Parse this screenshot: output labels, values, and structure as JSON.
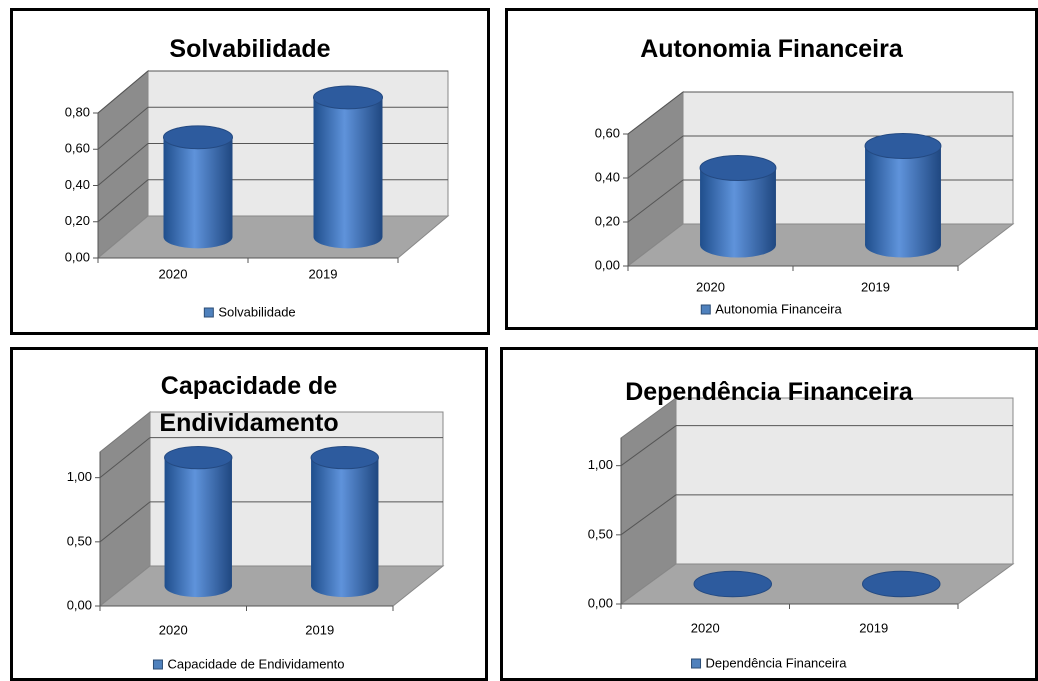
{
  "chart_data": [
    {
      "type": "bar3d",
      "title": "Solvabilidade",
      "categories": [
        "2020",
        "2019"
      ],
      "series": [
        {
          "name": "Solvabilidade",
          "color": "#4f81bd",
          "values": [
            0.55,
            0.77
          ]
        }
      ],
      "ylim": [
        0,
        0.8
      ],
      "yticks": [
        {
          "value": 0,
          "label": "0,00"
        },
        {
          "value": 0.2,
          "label": "0,20"
        },
        {
          "value": 0.4,
          "label": "0,40"
        },
        {
          "value": 0.6,
          "label": "0,60"
        },
        {
          "value": 0.8,
          "label": "0,80"
        }
      ],
      "grid": true,
      "legend": "bottom"
    },
    {
      "type": "bar3d",
      "title": "Autonomia Financeira",
      "categories": [
        "2020",
        "2019"
      ],
      "series": [
        {
          "name": "Autonomia Financeira",
          "color": "#4f81bd",
          "values": [
            0.35,
            0.45
          ]
        }
      ],
      "ylim": [
        0,
        0.6
      ],
      "yticks": [
        {
          "value": 0,
          "label": "0,00"
        },
        {
          "value": 0.2,
          "label": "0,20"
        },
        {
          "value": 0.4,
          "label": "0,40"
        },
        {
          "value": 0.6,
          "label": "0,60"
        }
      ],
      "grid": true,
      "legend": "bottom"
    },
    {
      "type": "bar3d",
      "title": "Capacidade de Endividamento",
      "categories": [
        "2020",
        "2019"
      ],
      "series": [
        {
          "name": "Capacidade de Endividamento",
          "color": "#4f81bd",
          "values": [
            1.0,
            1.0
          ]
        }
      ],
      "ylim": [
        0,
        1.2
      ],
      "yticks": [
        {
          "value": 0,
          "label": "0,00"
        },
        {
          "value": 0.5,
          "label": "0,50"
        },
        {
          "value": 1.0,
          "label": "1,00"
        }
      ],
      "grid": true,
      "legend": "bottom"
    },
    {
      "type": "bar3d",
      "title": "Dependência Financeira",
      "categories": [
        "2020",
        "2019"
      ],
      "series": [
        {
          "name": "Dependência Financeira",
          "color": "#4f81bd",
          "values": [
            0.0,
            0.0
          ]
        }
      ],
      "ylim": [
        0,
        1.2
      ],
      "yticks": [
        {
          "value": 0,
          "label": "0,00"
        },
        {
          "value": 0.5,
          "label": "0,50"
        },
        {
          "value": 1.0,
          "label": "1,00"
        }
      ],
      "grid": true,
      "legend": "bottom"
    }
  ]
}
